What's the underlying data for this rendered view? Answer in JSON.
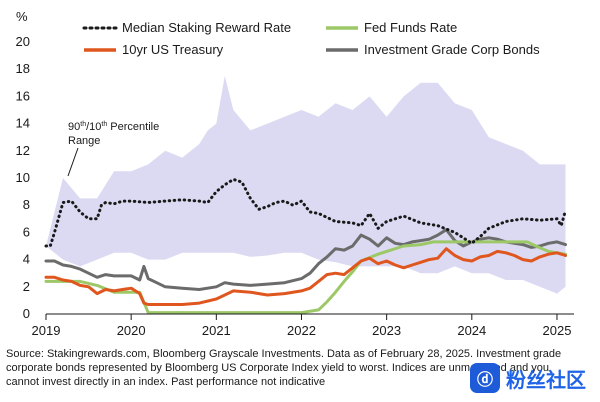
{
  "chart_data": {
    "type": "line",
    "y_unit_label": "%",
    "ylim": [
      0,
      20
    ],
    "y_ticks": [
      "0",
      "2",
      "4",
      "6",
      "8",
      "10",
      "12",
      "14",
      "16",
      "18",
      "20"
    ],
    "x_range": [
      2019.0,
      2025.2
    ],
    "x_ticks": [
      {
        "label": "2019",
        "x": 2019.0
      },
      {
        "label": "2020",
        "x": 2020.0
      },
      {
        "label": "2021",
        "x": 2021.0
      },
      {
        "label": "2022",
        "x": 2022.0
      },
      {
        "label": "2023",
        "x": 2023.0
      },
      {
        "label": "2024",
        "x": 2024.0
      },
      {
        "label": "2025",
        "x": 2025.0
      }
    ],
    "band": {
      "name": "90th/10th Percentile Range",
      "color": "#dcdaf2",
      "x": [
        2019.0,
        2019.2,
        2019.4,
        2019.6,
        2019.8,
        2020.0,
        2020.2,
        2020.4,
        2020.6,
        2020.8,
        2020.9,
        2021.0,
        2021.1,
        2021.2,
        2021.4,
        2021.6,
        2021.8,
        2022.0,
        2022.2,
        2022.4,
        2022.6,
        2022.8,
        2023.0,
        2023.2,
        2023.4,
        2023.6,
        2023.8,
        2024.0,
        2024.2,
        2024.4,
        2024.6,
        2024.8,
        2025.0,
        2025.1
      ],
      "upper": [
        5.0,
        10.0,
        8.5,
        8.5,
        10.5,
        10.5,
        11.0,
        12.0,
        11.5,
        12.5,
        13.5,
        14.0,
        17.5,
        15.0,
        13.5,
        14.0,
        14.5,
        15.0,
        14.5,
        15.5,
        15.0,
        16.0,
        14.5,
        16.0,
        17.0,
        17.0,
        15.5,
        15.0,
        13.0,
        12.5,
        12.0,
        11.0,
        11.0,
        11.0
      ],
      "lower": [
        5.0,
        4.0,
        3.5,
        4.0,
        4.5,
        4.5,
        4.0,
        4.0,
        4.5,
        4.5,
        4.5,
        4.5,
        4.5,
        4.5,
        4.2,
        4.3,
        4.5,
        4.5,
        4.0,
        3.8,
        3.5,
        3.5,
        3.5,
        3.5,
        3.0,
        3.0,
        3.5,
        3.0,
        3.0,
        2.5,
        2.5,
        2.0,
        1.5,
        2.0
      ]
    },
    "series": [
      {
        "name": "Median Staking Reward Rate",
        "color": "#1a1a1a",
        "style": "dotted",
        "x": [
          2019.0,
          2019.05,
          2019.1,
          2019.2,
          2019.3,
          2019.4,
          2019.5,
          2019.6,
          2019.65,
          2019.7,
          2019.8,
          2019.9,
          2020.0,
          2020.2,
          2020.4,
          2020.6,
          2020.8,
          2020.9,
          2021.0,
          2021.1,
          2021.2,
          2021.3,
          2021.4,
          2021.5,
          2021.6,
          2021.7,
          2021.8,
          2021.9,
          2022.0,
          2022.1,
          2022.2,
          2022.4,
          2022.6,
          2022.7,
          2022.8,
          2022.9,
          2023.0,
          2023.2,
          2023.4,
          2023.6,
          2023.8,
          2024.0,
          2024.1,
          2024.2,
          2024.4,
          2024.6,
          2024.8,
          2025.0,
          2025.05,
          2025.1
        ],
        "values": [
          5.0,
          5.0,
          6.0,
          8.2,
          8.3,
          7.5,
          7.0,
          7.0,
          8.0,
          8.2,
          8.1,
          8.3,
          8.3,
          8.2,
          8.3,
          8.4,
          8.3,
          8.2,
          9.0,
          9.5,
          9.9,
          9.7,
          8.5,
          7.7,
          7.9,
          8.2,
          8.3,
          8.0,
          8.3,
          7.5,
          7.4,
          6.8,
          6.7,
          6.5,
          7.4,
          6.3,
          6.8,
          7.2,
          6.7,
          6.5,
          6.0,
          5.2,
          5.7,
          6.3,
          6.8,
          7.0,
          6.9,
          7.0,
          6.5,
          7.6
        ]
      },
      {
        "name": "Fed Funds Rate",
        "color": "#9dc868",
        "style": "solid",
        "x": [
          2019.0,
          2019.4,
          2019.6,
          2019.8,
          2019.95,
          2020.1,
          2020.2,
          2020.5,
          2021.0,
          2021.5,
          2022.0,
          2022.2,
          2022.3,
          2022.4,
          2022.5,
          2022.6,
          2022.7,
          2022.9,
          2023.0,
          2023.2,
          2023.4,
          2023.55,
          2023.7,
          2024.0,
          2024.4,
          2024.65,
          2024.75,
          2024.9,
          2025.0,
          2025.1
        ],
        "values": [
          2.4,
          2.4,
          2.1,
          1.6,
          1.6,
          1.6,
          0.1,
          0.1,
          0.1,
          0.1,
          0.1,
          0.3,
          0.9,
          1.6,
          2.4,
          3.1,
          3.9,
          4.4,
          4.6,
          5.0,
          5.1,
          5.3,
          5.3,
          5.3,
          5.3,
          5.3,
          5.0,
          4.6,
          4.5,
          4.4
        ]
      },
      {
        "name": "10yr US Treasury",
        "color": "#e0561f",
        "style": "solid",
        "x": [
          2019.0,
          2019.1,
          2019.2,
          2019.3,
          2019.4,
          2019.5,
          2019.6,
          2019.7,
          2019.8,
          2019.9,
          2020.0,
          2020.1,
          2020.15,
          2020.2,
          2020.4,
          2020.6,
          2020.8,
          2021.0,
          2021.1,
          2021.2,
          2021.4,
          2021.6,
          2021.8,
          2022.0,
          2022.1,
          2022.2,
          2022.3,
          2022.4,
          2022.5,
          2022.6,
          2022.7,
          2022.8,
          2022.9,
          2023.0,
          2023.1,
          2023.2,
          2023.3,
          2023.4,
          2023.5,
          2023.6,
          2023.7,
          2023.8,
          2023.9,
          2024.0,
          2024.1,
          2024.2,
          2024.3,
          2024.4,
          2024.5,
          2024.6,
          2024.7,
          2024.8,
          2024.9,
          2025.0,
          2025.1
        ],
        "values": [
          2.7,
          2.7,
          2.5,
          2.4,
          2.1,
          2.0,
          1.5,
          1.8,
          1.7,
          1.8,
          1.9,
          1.5,
          0.8,
          0.7,
          0.7,
          0.7,
          0.8,
          1.1,
          1.4,
          1.7,
          1.6,
          1.4,
          1.5,
          1.7,
          1.9,
          2.4,
          2.9,
          3.0,
          2.9,
          3.4,
          3.9,
          4.1,
          3.7,
          3.9,
          3.6,
          3.4,
          3.6,
          3.8,
          4.0,
          4.1,
          4.8,
          4.3,
          4.0,
          3.9,
          4.2,
          4.3,
          4.6,
          4.5,
          4.3,
          4.0,
          3.9,
          4.2,
          4.4,
          4.5,
          4.3
        ]
      },
      {
        "name": "Investment Grade Corp Bonds",
        "color": "#6b6b6b",
        "style": "solid",
        "x": [
          2019.0,
          2019.1,
          2019.2,
          2019.3,
          2019.4,
          2019.5,
          2019.6,
          2019.7,
          2019.8,
          2019.9,
          2020.0,
          2020.1,
          2020.15,
          2020.2,
          2020.3,
          2020.4,
          2020.6,
          2020.8,
          2021.0,
          2021.1,
          2021.2,
          2021.4,
          2021.6,
          2021.8,
          2022.0,
          2022.1,
          2022.2,
          2022.3,
          2022.4,
          2022.5,
          2022.6,
          2022.7,
          2022.8,
          2022.9,
          2023.0,
          2023.1,
          2023.2,
          2023.3,
          2023.4,
          2023.5,
          2023.6,
          2023.7,
          2023.8,
          2023.9,
          2024.0,
          2024.1,
          2024.2,
          2024.3,
          2024.4,
          2024.5,
          2024.6,
          2024.7,
          2024.8,
          2024.9,
          2025.0,
          2025.1
        ],
        "values": [
          3.9,
          3.9,
          3.6,
          3.5,
          3.3,
          3.0,
          2.7,
          2.9,
          2.8,
          2.8,
          2.8,
          2.5,
          3.5,
          2.6,
          2.3,
          2.0,
          1.9,
          1.8,
          2.0,
          2.3,
          2.2,
          2.1,
          2.2,
          2.3,
          2.6,
          3.0,
          3.7,
          4.2,
          4.8,
          4.7,
          5.0,
          5.8,
          5.5,
          5.0,
          5.6,
          5.2,
          5.1,
          5.3,
          5.4,
          5.5,
          5.8,
          6.2,
          5.4,
          5.0,
          5.3,
          5.5,
          5.6,
          5.5,
          5.3,
          5.2,
          5.1,
          4.9,
          5.0,
          5.2,
          5.3,
          5.1
        ]
      }
    ],
    "legend": {
      "placement": "top",
      "entries": [
        {
          "name": "Median Staking Reward Rate",
          "style": "dotted",
          "color": "#1a1a1a"
        },
        {
          "name": "Fed Funds Rate",
          "style": "solid",
          "color": "#9dc868"
        },
        {
          "name": "10yr US Treasury",
          "style": "solid",
          "color": "#e0561f"
        },
        {
          "name": "Investment Grade Corp Bonds",
          "style": "solid",
          "color": "#6b6b6b"
        }
      ]
    },
    "annotation": {
      "line1_base": "90",
      "sup1": "th",
      "line1_mid": "/10",
      "sup2": "th",
      "line1_end": " Percentile",
      "line2": "Range"
    }
  },
  "source_note": "Source: Stakingrewards.com, Bloomberg Grayscale Investments. Data as of February 28, 2025. Investment grade corporate bonds represented by Bloomberg US Corporate Index yield to worst. Indices are unmanaged and you cannot invest directly in an index. Past performance not indicative",
  "watermark": {
    "logo_text": "ⓓ",
    "text": "粉丝社区"
  }
}
